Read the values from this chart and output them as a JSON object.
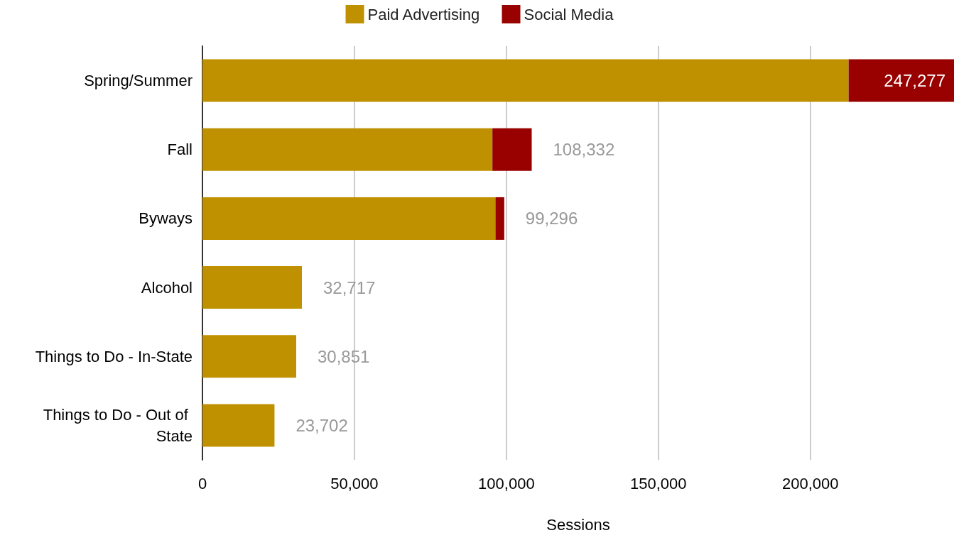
{
  "chart_data": {
    "type": "bar",
    "orientation": "horizontal",
    "stacked": true,
    "xlabel": "Sessions",
    "categories": [
      "Spring/Summer",
      "Fall",
      "Byways",
      "Alcohol",
      "Things to Do - In-State",
      "Things to Do - Out of State"
    ],
    "series": [
      {
        "name": "Paid Advertising",
        "color": "#bf9000",
        "values": [
          212600,
          95400,
          96400,
          32717,
          30851,
          23702
        ]
      },
      {
        "name": "Social Media",
        "color": "#990000",
        "values": [
          34677,
          12932,
          2896,
          null,
          null,
          null
        ]
      }
    ],
    "totals": [
      "247,277",
      "108,332",
      "99,296",
      "32,717",
      "30,851",
      "23,702"
    ],
    "xlim": [
      0,
      247277
    ],
    "xticks": [
      0,
      {
        "value": 50000,
        "label": "50,000"
      },
      {
        "value": 100000,
        "label": "100,000"
      },
      {
        "value": 150000,
        "label": "150,000"
      },
      {
        "value": 200000,
        "label": "200,000"
      }
    ],
    "grid": "x",
    "legend": "top"
  }
}
